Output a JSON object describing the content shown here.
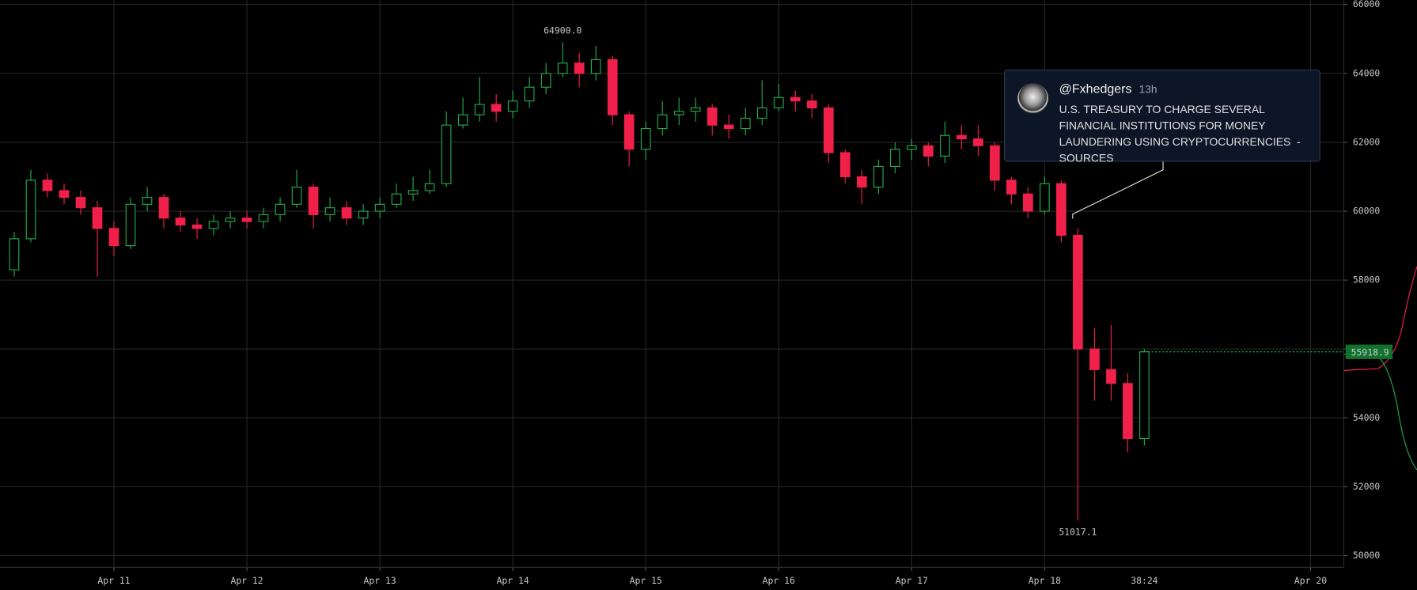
{
  "chart_data": {
    "type": "candlestick",
    "up_color": "#22ab4a",
    "down_color": "#f0204a",
    "grid": true,
    "xlim": [
      10.143,
      20.25
    ],
    "xticks": [
      {
        "value": 11,
        "label": "Apr 11"
      },
      {
        "value": 12,
        "label": "Apr 12"
      },
      {
        "value": 13,
        "label": "Apr 13"
      },
      {
        "value": 14,
        "label": "Apr 14"
      },
      {
        "value": 15,
        "label": "Apr 15"
      },
      {
        "value": 16,
        "label": "Apr 16"
      },
      {
        "value": 17,
        "label": "Apr 17"
      },
      {
        "value": 18,
        "label": "Apr 18"
      },
      {
        "value": 20,
        "label": "Apr 20"
      }
    ],
    "ylim": [
      49660,
      66130
    ],
    "yticks": [
      50000,
      52000,
      54000,
      56000,
      58000,
      60000,
      62000,
      64000,
      66000
    ],
    "x": [
      10.25,
      10.375,
      10.5,
      10.625,
      10.75,
      10.875,
      11,
      11.125,
      11.25,
      11.375,
      11.5,
      11.625,
      11.75,
      11.875,
      12,
      12.125,
      12.25,
      12.375,
      12.5,
      12.625,
      12.75,
      12.875,
      13,
      13.125,
      13.25,
      13.375,
      13.5,
      13.625,
      13.75,
      13.875,
      14,
      14.125,
      14.25,
      14.375,
      14.5,
      14.625,
      14.75,
      14.875,
      15,
      15.125,
      15.25,
      15.375,
      15.5,
      15.625,
      15.75,
      15.875,
      16,
      16.125,
      16.25,
      16.375,
      16.5,
      16.625,
      16.75,
      16.875,
      17,
      17.125,
      17.25,
      17.375,
      17.5,
      17.625,
      17.75,
      17.875,
      18,
      18.125,
      18.25,
      18.375,
      18.5,
      18.625,
      18.75
    ],
    "open": [
      58300,
      59200,
      60900,
      60600,
      60400,
      60100,
      59500,
      59000,
      60200,
      60400,
      59800,
      59600,
      59500,
      59700,
      59800,
      59700,
      59900,
      60200,
      60700,
      59900,
      60100,
      59800,
      60000,
      60200,
      60500,
      60600,
      60800,
      62500,
      62800,
      63100,
      62900,
      63200,
      63600,
      64000,
      64300,
      64000,
      64400,
      62800,
      61800,
      62400,
      62800,
      62900,
      63000,
      62500,
      62400,
      62700,
      63000,
      63300,
      63200,
      63000,
      61700,
      61000,
      60700,
      61300,
      61800,
      61900,
      61600,
      62200,
      62100,
      61900,
      60900,
      60500,
      60000,
      60800,
      59300,
      56000,
      55400,
      55000,
      53400
    ],
    "high": [
      59400,
      61200,
      61100,
      60800,
      60600,
      60300,
      59700,
      60400,
      60700,
      60500,
      60000,
      59800,
      59900,
      60000,
      60000,
      60100,
      60400,
      61200,
      60800,
      60400,
      60300,
      60200,
      60400,
      60800,
      61000,
      61200,
      62900,
      63300,
      63900,
      63400,
      63500,
      63900,
      64300,
      64900,
      64600,
      64800,
      64500,
      62900,
      62600,
      63200,
      63300,
      63300,
      63100,
      62800,
      63000,
      63800,
      63700,
      63500,
      63400,
      63100,
      61800,
      61200,
      61500,
      62000,
      62100,
      62000,
      62600,
      62500,
      62500,
      62000,
      61000,
      60700,
      61000,
      60900,
      59500,
      56600,
      56700,
      55300,
      56000
    ],
    "low": [
      58100,
      59100,
      60400,
      60200,
      59900,
      58100,
      58700,
      58900,
      60000,
      59500,
      59400,
      59200,
      59300,
      59500,
      59500,
      59500,
      59700,
      60100,
      59500,
      59700,
      59600,
      59600,
      59800,
      60100,
      60300,
      60500,
      60700,
      62400,
      62600,
      62600,
      62700,
      63000,
      63400,
      63900,
      63600,
      63800,
      62500,
      61300,
      61500,
      62200,
      62500,
      62600,
      62200,
      62100,
      62200,
      62500,
      62900,
      62900,
      62700,
      61400,
      60800,
      60200,
      60500,
      61100,
      61500,
      61300,
      61400,
      61800,
      61600,
      60600,
      60200,
      59800,
      59900,
      59100,
      51017.1,
      54500,
      54500,
      53000,
      53200
    ],
    "close": [
      59200,
      60900,
      60600,
      60400,
      60100,
      59500,
      59000,
      60200,
      60400,
      59800,
      59600,
      59500,
      59700,
      59800,
      59700,
      59900,
      60200,
      60700,
      59900,
      60100,
      59800,
      60000,
      60200,
      60500,
      60600,
      60800,
      62500,
      62800,
      63100,
      62900,
      63200,
      63600,
      64000,
      64300,
      64000,
      64400,
      62800,
      61800,
      62400,
      62800,
      62900,
      63000,
      62500,
      62400,
      62700,
      63000,
      63300,
      63200,
      63000,
      61700,
      61000,
      60700,
      61300,
      61800,
      61900,
      61600,
      62200,
      62100,
      61900,
      60900,
      60500,
      60000,
      60800,
      59300,
      56000,
      55400,
      55000,
      53400,
      55918.9
    ],
    "extreme_labels": [
      {
        "value": 64900,
        "label": "64900.0",
        "side": "high"
      },
      {
        "value": 51017.1,
        "label": "51017.1",
        "side": "low"
      }
    ],
    "countdown": "38:24"
  },
  "tweet": {
    "handle": "@Fxhedgers",
    "age": "13h",
    "text": "U.S. TREASURY TO CHARGE SEVERAL FINANCIAL INSTITUTIONS FOR MONEY LAUNDERING USING CRYPTOCURRENCIES  -SOURCES"
  }
}
